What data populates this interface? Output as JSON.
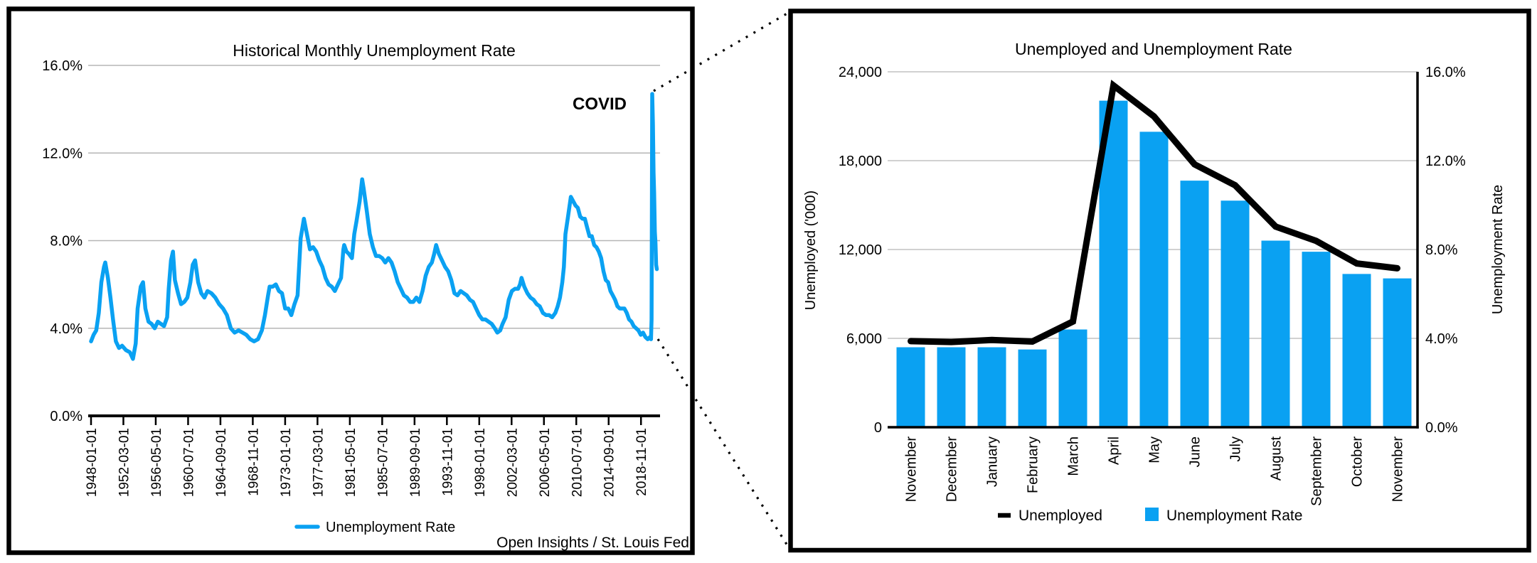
{
  "page": {
    "background": "#ffffff"
  },
  "colors": {
    "accent_blue": "#0aa1f2",
    "series_black": "#000000",
    "grid_gray": "#b5b5b5",
    "panel_border": "#000000"
  },
  "chart_data": [
    {
      "type": "line",
      "title": "Historical Monthly Unemployment Rate",
      "annotation": "COVID",
      "source": "Open Insights / St. Louis Fed",
      "legend": [
        {
          "label": "Unemployment Rate",
          "marker": "line",
          "color": "#0aa1f2"
        }
      ],
      "ylim": [
        0,
        16
      ],
      "x_range_years": [
        1948,
        2020.92
      ],
      "grid": true,
      "y_axis": {
        "tick_values": [
          16,
          12,
          8,
          4,
          0
        ],
        "tick_labels": [
          "16.0%",
          "12.0%",
          "8.0%",
          "4.0%",
          "0.0%"
        ]
      },
      "x_axis": {
        "tick_interval_months": 50,
        "tick_labels": [
          "1948-01-01",
          "1952-03-01",
          "1956-05-01",
          "1960-07-01",
          "1964-09-01",
          "1968-11-01",
          "1973-01-01",
          "1977-03-01",
          "1981-05-01",
          "1985-07-01",
          "1989-09-01",
          "1993-11-01",
          "1998-01-01",
          "2002-03-01",
          "2006-05-01",
          "2010-07-01",
          "2014-09-01",
          "2018-11-01"
        ]
      },
      "series": [
        {
          "name": "Unemployment Rate",
          "color": "#0aa1f2",
          "points": [
            [
              1948.0,
              3.4
            ],
            [
              1948.33,
              3.7
            ],
            [
              1948.67,
              3.9
            ],
            [
              1949.0,
              4.7
            ],
            [
              1949.33,
              6.1
            ],
            [
              1949.67,
              6.8
            ],
            [
              1949.83,
              7.0
            ],
            [
              1950.17,
              6.3
            ],
            [
              1950.5,
              5.4
            ],
            [
              1950.83,
              4.4
            ],
            [
              1951.2,
              3.4
            ],
            [
              1951.6,
              3.1
            ],
            [
              1952.0,
              3.2
            ],
            [
              1952.5,
              3.0
            ],
            [
              1953.0,
              2.9
            ],
            [
              1953.4,
              2.6
            ],
            [
              1953.75,
              3.3
            ],
            [
              1954.0,
              4.9
            ],
            [
              1954.4,
              5.9
            ],
            [
              1954.7,
              6.1
            ],
            [
              1955.0,
              4.9
            ],
            [
              1955.4,
              4.3
            ],
            [
              1955.8,
              4.2
            ],
            [
              1956.2,
              4.0
            ],
            [
              1956.6,
              4.3
            ],
            [
              1957.0,
              4.2
            ],
            [
              1957.4,
              4.1
            ],
            [
              1957.8,
              4.5
            ],
            [
              1958.0,
              5.8
            ],
            [
              1958.3,
              7.1
            ],
            [
              1958.55,
              7.5
            ],
            [
              1958.8,
              6.2
            ],
            [
              1959.2,
              5.6
            ],
            [
              1959.6,
              5.1
            ],
            [
              1960.0,
              5.2
            ],
            [
              1960.4,
              5.4
            ],
            [
              1960.8,
              6.1
            ],
            [
              1961.1,
              6.9
            ],
            [
              1961.4,
              7.1
            ],
            [
              1961.8,
              6.1
            ],
            [
              1962.2,
              5.6
            ],
            [
              1962.6,
              5.4
            ],
            [
              1963.0,
              5.7
            ],
            [
              1963.5,
              5.6
            ],
            [
              1964.0,
              5.4
            ],
            [
              1964.5,
              5.1
            ],
            [
              1965.0,
              4.9
            ],
            [
              1965.5,
              4.6
            ],
            [
              1966.0,
              4.0
            ],
            [
              1966.5,
              3.8
            ],
            [
              1967.0,
              3.9
            ],
            [
              1967.5,
              3.8
            ],
            [
              1968.0,
              3.7
            ],
            [
              1968.5,
              3.5
            ],
            [
              1969.0,
              3.4
            ],
            [
              1969.5,
              3.5
            ],
            [
              1970.0,
              3.9
            ],
            [
              1970.4,
              4.6
            ],
            [
              1970.8,
              5.5
            ],
            [
              1971.0,
              5.9
            ],
            [
              1971.4,
              5.9
            ],
            [
              1971.8,
              6.0
            ],
            [
              1972.2,
              5.7
            ],
            [
              1972.6,
              5.6
            ],
            [
              1973.0,
              4.9
            ],
            [
              1973.4,
              4.9
            ],
            [
              1973.8,
              4.6
            ],
            [
              1974.2,
              5.1
            ],
            [
              1974.6,
              5.5
            ],
            [
              1975.0,
              8.1
            ],
            [
              1975.33,
              8.8
            ],
            [
              1975.42,
              9.0
            ],
            [
              1975.75,
              8.4
            ],
            [
              1976.2,
              7.6
            ],
            [
              1976.6,
              7.7
            ],
            [
              1977.0,
              7.5
            ],
            [
              1977.4,
              7.1
            ],
            [
              1977.8,
              6.8
            ],
            [
              1978.2,
              6.3
            ],
            [
              1978.6,
              6.0
            ],
            [
              1979.0,
              5.9
            ],
            [
              1979.4,
              5.7
            ],
            [
              1979.8,
              6.0
            ],
            [
              1980.2,
              6.3
            ],
            [
              1980.5,
              7.6
            ],
            [
              1980.6,
              7.8
            ],
            [
              1980.9,
              7.5
            ],
            [
              1981.2,
              7.4
            ],
            [
              1981.6,
              7.2
            ],
            [
              1981.9,
              8.3
            ],
            [
              1982.2,
              8.9
            ],
            [
              1982.6,
              9.8
            ],
            [
              1982.92,
              10.8
            ],
            [
              1983.1,
              10.4
            ],
            [
              1983.5,
              9.4
            ],
            [
              1983.9,
              8.3
            ],
            [
              1984.3,
              7.7
            ],
            [
              1984.7,
              7.3
            ],
            [
              1985.1,
              7.3
            ],
            [
              1985.5,
              7.2
            ],
            [
              1985.9,
              7.0
            ],
            [
              1986.3,
              7.2
            ],
            [
              1986.7,
              7.0
            ],
            [
              1987.1,
              6.6
            ],
            [
              1987.5,
              6.1
            ],
            [
              1987.9,
              5.8
            ],
            [
              1988.3,
              5.5
            ],
            [
              1988.7,
              5.4
            ],
            [
              1989.1,
              5.2
            ],
            [
              1989.5,
              5.2
            ],
            [
              1989.9,
              5.4
            ],
            [
              1990.3,
              5.2
            ],
            [
              1990.7,
              5.7
            ],
            [
              1991.1,
              6.4
            ],
            [
              1991.5,
              6.8
            ],
            [
              1991.9,
              7.0
            ],
            [
              1992.2,
              7.4
            ],
            [
              1992.45,
              7.8
            ],
            [
              1992.8,
              7.4
            ],
            [
              1993.2,
              7.1
            ],
            [
              1993.6,
              6.8
            ],
            [
              1994.0,
              6.6
            ],
            [
              1994.4,
              6.2
            ],
            [
              1994.8,
              5.6
            ],
            [
              1995.2,
              5.5
            ],
            [
              1995.6,
              5.7
            ],
            [
              1996.0,
              5.6
            ],
            [
              1996.4,
              5.5
            ],
            [
              1996.8,
              5.3
            ],
            [
              1997.2,
              5.2
            ],
            [
              1997.6,
              4.9
            ],
            [
              1998.0,
              4.6
            ],
            [
              1998.4,
              4.4
            ],
            [
              1998.8,
              4.4
            ],
            [
              1999.2,
              4.3
            ],
            [
              1999.6,
              4.2
            ],
            [
              2000.0,
              4.0
            ],
            [
              2000.33,
              3.8
            ],
            [
              2000.7,
              3.9
            ],
            [
              2001.0,
              4.2
            ],
            [
              2001.4,
              4.5
            ],
            [
              2001.8,
              5.3
            ],
            [
              2002.2,
              5.7
            ],
            [
              2002.6,
              5.8
            ],
            [
              2003.0,
              5.8
            ],
            [
              2003.25,
              6.0
            ],
            [
              2003.45,
              6.3
            ],
            [
              2003.8,
              5.9
            ],
            [
              2004.2,
              5.6
            ],
            [
              2004.6,
              5.4
            ],
            [
              2005.0,
              5.3
            ],
            [
              2005.4,
              5.1
            ],
            [
              2005.8,
              5.0
            ],
            [
              2006.2,
              4.7
            ],
            [
              2006.6,
              4.6
            ],
            [
              2007.0,
              4.6
            ],
            [
              2007.4,
              4.5
            ],
            [
              2007.8,
              4.7
            ],
            [
              2008.1,
              5.0
            ],
            [
              2008.4,
              5.4
            ],
            [
              2008.7,
              6.1
            ],
            [
              2008.9,
              6.8
            ],
            [
              2009.1,
              8.3
            ],
            [
              2009.4,
              9.0
            ],
            [
              2009.6,
              9.5
            ],
            [
              2009.8,
              10.0
            ],
            [
              2010.1,
              9.8
            ],
            [
              2010.4,
              9.6
            ],
            [
              2010.7,
              9.5
            ],
            [
              2011.0,
              9.1
            ],
            [
              2011.3,
              9.0
            ],
            [
              2011.6,
              9.0
            ],
            [
              2011.9,
              8.6
            ],
            [
              2012.2,
              8.2
            ],
            [
              2012.5,
              8.2
            ],
            [
              2012.8,
              7.8
            ],
            [
              2013.1,
              7.7
            ],
            [
              2013.4,
              7.5
            ],
            [
              2013.7,
              7.2
            ],
            [
              2014.0,
              6.6
            ],
            [
              2014.3,
              6.2
            ],
            [
              2014.6,
              6.1
            ],
            [
              2014.9,
              5.7
            ],
            [
              2015.2,
              5.5
            ],
            [
              2015.5,
              5.3
            ],
            [
              2015.8,
              5.0
            ],
            [
              2016.1,
              4.9
            ],
            [
              2016.4,
              4.9
            ],
            [
              2016.7,
              4.9
            ],
            [
              2017.0,
              4.7
            ],
            [
              2017.3,
              4.4
            ],
            [
              2017.6,
              4.3
            ],
            [
              2017.9,
              4.1
            ],
            [
              2018.2,
              4.0
            ],
            [
              2018.5,
              3.9
            ],
            [
              2018.8,
              3.7
            ],
            [
              2019.1,
              3.8
            ],
            [
              2019.4,
              3.6
            ],
            [
              2019.7,
              3.5
            ],
            [
              2020.0,
              3.6
            ],
            [
              2020.12,
              3.5
            ],
            [
              2020.2,
              4.4
            ],
            [
              2020.28,
              14.7
            ],
            [
              2020.37,
              13.3
            ],
            [
              2020.45,
              11.1
            ],
            [
              2020.53,
              10.2
            ],
            [
              2020.62,
              8.4
            ],
            [
              2020.7,
              7.9
            ],
            [
              2020.78,
              6.9
            ],
            [
              2020.87,
              6.7
            ]
          ]
        }
      ]
    },
    {
      "type": "combo",
      "title": "Unemployed and Unemployment Rate",
      "categories": [
        "November",
        "December",
        "January",
        "February",
        "March",
        "April",
        "May",
        "June",
        "July",
        "August",
        "September",
        "October",
        "November"
      ],
      "series": [
        {
          "name": "Unemployed",
          "chart": "line",
          "axis": "left",
          "color": "#000000",
          "values": [
            5811,
            5753,
            5892,
            5787,
            7140,
            23078,
            20985,
            17750,
            16338,
            13550,
            12580,
            11061,
            10735
          ]
        },
        {
          "name": "Unemployment Rate",
          "chart": "bar",
          "axis": "right",
          "color": "#0aa1f2",
          "values": [
            3.6,
            3.6,
            3.6,
            3.5,
            4.4,
            14.7,
            13.3,
            11.1,
            10.2,
            8.4,
            7.9,
            6.9,
            6.7
          ]
        }
      ],
      "left_axis": {
        "label": "Unemployed ('000)",
        "max": 24000,
        "tick_values": [
          24000,
          18000,
          12000,
          6000,
          0
        ],
        "tick_labels": [
          "24,000",
          "18,000",
          "12,000",
          "6,000",
          "0"
        ]
      },
      "right_axis": {
        "label": "Unemployment Rate",
        "max": 16,
        "tick_values": [
          16,
          12,
          8,
          4,
          0
        ],
        "tick_labels": [
          "16.0%",
          "12.0%",
          "8.0%",
          "4.0%",
          "0.0%"
        ]
      },
      "legend": [
        {
          "label": "Unemployed",
          "marker": "line",
          "color": "#000000"
        },
        {
          "label": "Unemployment Rate",
          "marker": "square",
          "color": "#0aa1f2"
        }
      ],
      "grid": true
    }
  ]
}
